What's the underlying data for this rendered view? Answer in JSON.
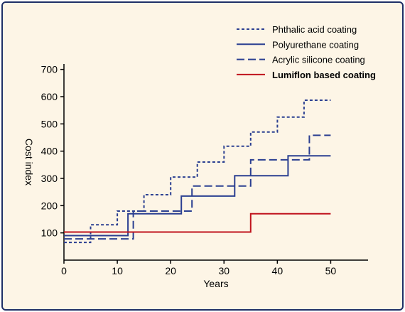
{
  "chart_data": {
    "type": "line",
    "step": true,
    "xlabel": "Years",
    "ylabel": "Cost index",
    "xlim": [
      0,
      57
    ],
    "ylim": [
      0,
      720
    ],
    "xticks": [
      0,
      10,
      20,
      30,
      40,
      50
    ],
    "yticks": [
      100,
      200,
      300,
      400,
      500,
      600,
      700
    ],
    "grid": false,
    "legend_position": "top-right",
    "series": [
      {
        "name": "Phthalic acid coating",
        "color": "#2b3f91",
        "dash": "dotted",
        "x": [
          0,
          5,
          5,
          10,
          10,
          15,
          15,
          20,
          20,
          25,
          25,
          30,
          30,
          35,
          35,
          40,
          40,
          45,
          45,
          50
        ],
        "y": [
          65,
          65,
          130,
          130,
          180,
          180,
          240,
          240,
          305,
          305,
          360,
          360,
          418,
          418,
          470,
          470,
          525,
          525,
          587,
          587
        ]
      },
      {
        "name": "Polyurethane coating",
        "color": "#2b3f91",
        "dash": "solid",
        "x": [
          0,
          12,
          12,
          22,
          22,
          32,
          32,
          42,
          42,
          50
        ],
        "y": [
          90,
          90,
          170,
          170,
          235,
          235,
          310,
          310,
          383,
          383
        ]
      },
      {
        "name": "Acrylic silicone coating",
        "color": "#2b3f91",
        "dash": "dashed",
        "x": [
          0,
          13,
          13,
          24,
          24,
          35,
          35,
          46,
          46,
          50
        ],
        "y": [
          78,
          78,
          180,
          180,
          272,
          272,
          368,
          368,
          458,
          458
        ]
      },
      {
        "name": "Lumiflon based coating",
        "color": "#c0131d",
        "dash": "solid",
        "label_bold": true,
        "x": [
          0,
          35,
          35,
          50
        ],
        "y": [
          103,
          103,
          170,
          170
        ]
      }
    ]
  }
}
